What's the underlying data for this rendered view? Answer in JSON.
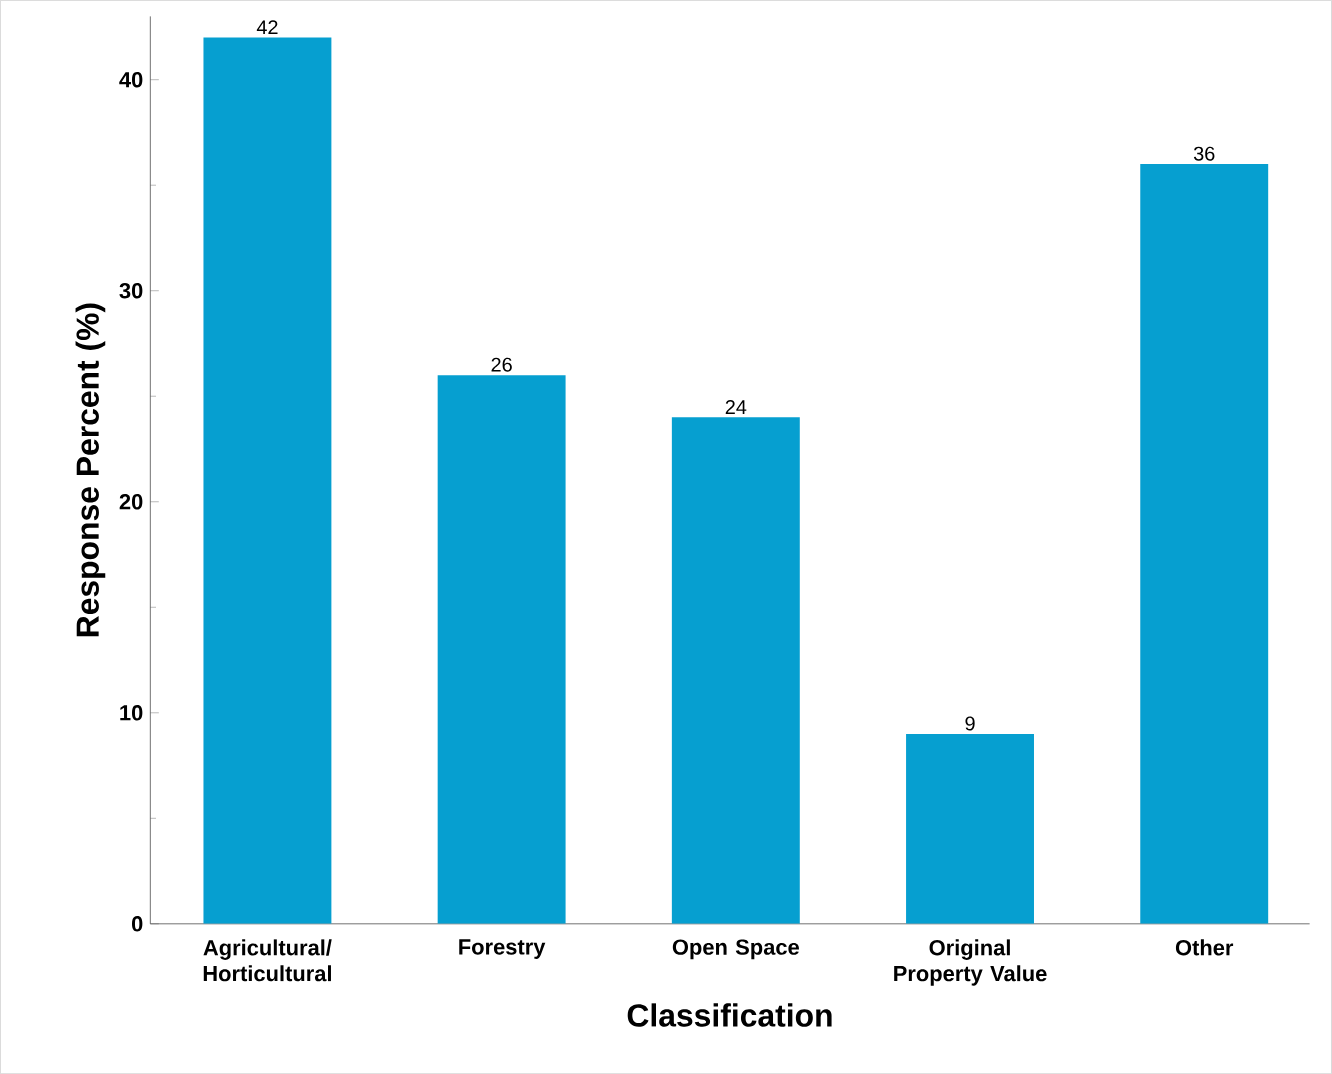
{
  "chart_data": {
    "type": "bar",
    "xlabel": "Classification",
    "ylabel": "Response Percent (%)",
    "categories": [
      "Agricultural/ Horticultural",
      "Forestry",
      "Open Space",
      "Original Property Value",
      "Other"
    ],
    "values": [
      42,
      26,
      24,
      9,
      36
    ],
    "color": "#069fd0",
    "ylim": [
      0,
      43
    ],
    "yticks": [
      0,
      10,
      20,
      30,
      40
    ],
    "data_labels": true
  }
}
